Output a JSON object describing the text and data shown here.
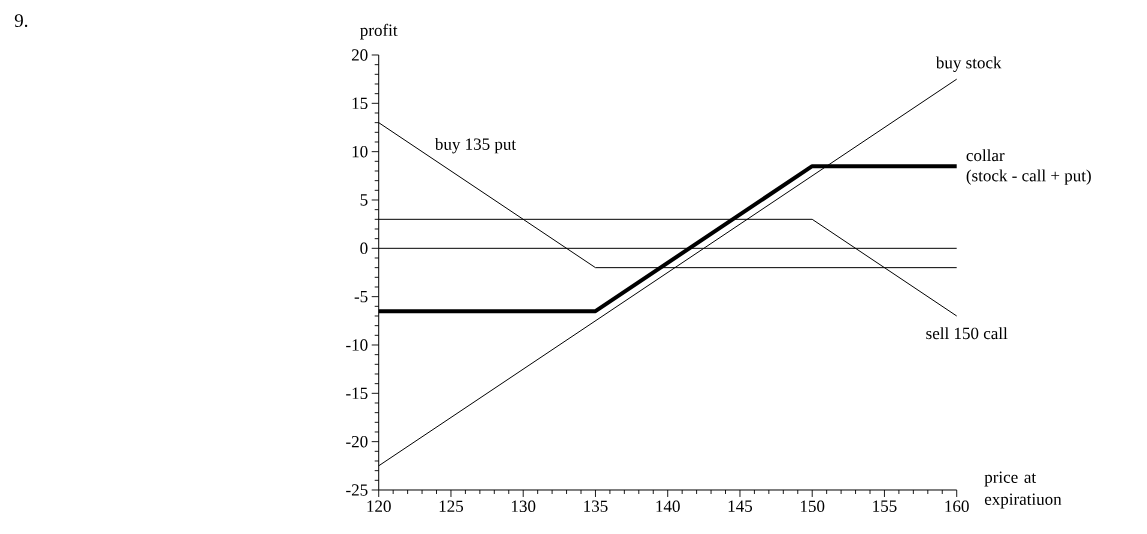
{
  "chart_data": {
    "type": "line",
    "xlabel": "price at expiratiuon",
    "ylabel": "profit",
    "annotations": [
      "9.",
      {
        "text": "(stock - call + put)",
        "x": 160,
        "y": 8.5
      }
    ],
    "xlim": [
      120,
      160
    ],
    "ylim": [
      -25,
      20
    ],
    "xticks": [
      120,
      125,
      130,
      135,
      140,
      145,
      150,
      155,
      160,
      {
        "value": 121,
        "label": null
      },
      {
        "value": 122,
        "label": null
      },
      {
        "value": 123,
        "label": null
      },
      {
        "value": 124,
        "label": null
      },
      {
        "value": 126,
        "label": null
      },
      {
        "value": 127,
        "label": null
      },
      {
        "value": 128,
        "label": null
      },
      {
        "value": 129,
        "label": null
      },
      {
        "value": 131,
        "label": null
      },
      {
        "value": 132,
        "label": null
      },
      {
        "value": 133,
        "label": null
      },
      {
        "value": 134,
        "label": null
      },
      {
        "value": 136,
        "label": null
      },
      {
        "value": 137,
        "label": null
      },
      {
        "value": 138,
        "label": null
      },
      {
        "value": 139,
        "label": null
      },
      {
        "value": 141,
        "label": null
      },
      {
        "value": 142,
        "label": null
      },
      {
        "value": 143,
        "label": null
      },
      {
        "value": 144,
        "label": null
      },
      {
        "value": 146,
        "label": null
      },
      {
        "value": 147,
        "label": null
      },
      {
        "value": 148,
        "label": null
      },
      {
        "value": 149,
        "label": null
      },
      {
        "value": 151,
        "label": null
      },
      {
        "value": 152,
        "label": null
      },
      {
        "value": 153,
        "label": null
      },
      {
        "value": 154,
        "label": null
      },
      {
        "value": 156,
        "label": null
      },
      {
        "value": 157,
        "label": null
      },
      {
        "value": 158,
        "label": null
      },
      {
        "value": 159,
        "label": null
      }
    ],
    "yticks": [
      -25,
      -20,
      -15,
      -10,
      -5,
      0,
      5,
      10,
      15,
      20,
      {
        "value": -24,
        "label": null
      },
      {
        "value": -23,
        "label": null
      },
      {
        "value": -22,
        "label": null
      },
      {
        "value": -21,
        "label": null
      },
      {
        "value": -19,
        "label": null
      },
      {
        "value": -18,
        "label": null
      },
      {
        "value": -17,
        "label": null
      },
      {
        "value": -16,
        "label": null
      },
      {
        "value": -14,
        "label": null
      },
      {
        "value": -13,
        "label": null
      },
      {
        "value": -12,
        "label": null
      },
      {
        "value": -11,
        "label": null
      },
      {
        "value": -9,
        "label": null
      },
      {
        "value": -8,
        "label": null
      },
      {
        "value": -7,
        "label": null
      },
      {
        "value": -6,
        "label": null
      },
      {
        "value": -4,
        "label": null
      },
      {
        "value": -3,
        "label": null
      },
      {
        "value": -2,
        "label": null
      },
      {
        "value": -1,
        "label": null
      },
      {
        "value": 1,
        "label": null
      },
      {
        "value": 2,
        "label": null
      },
      {
        "value": 3,
        "label": null
      },
      {
        "value": 4,
        "label": null
      },
      {
        "value": 6,
        "label": null
      },
      {
        "value": 7,
        "label": null
      },
      {
        "value": 8,
        "label": null
      },
      {
        "value": 9,
        "label": null
      },
      {
        "value": 11,
        "label": null
      },
      {
        "value": 12,
        "label": null
      },
      {
        "value": 13,
        "label": null
      },
      {
        "value": 14,
        "label": null
      },
      {
        "value": 16,
        "label": null
      },
      {
        "value": 17,
        "label": null
      },
      {
        "value": 18,
        "label": null
      },
      {
        "value": 19,
        "label": null
      }
    ],
    "ref_lines": [
      {
        "axis": "y",
        "value": 0,
        "color": "#000000"
      }
    ],
    "series": [
      {
        "name": "buy stock",
        "color": "#000000",
        "x": [
          120,
          160
        ],
        "values": [
          -22.5,
          17.5
        ]
      },
      {
        "name": "buy 135 put",
        "color": "#000000",
        "x": [
          120,
          135,
          160
        ],
        "values": [
          13,
          -2,
          -2
        ]
      },
      {
        "name": "sell 150 call",
        "color": "#000000",
        "x": [
          120,
          150,
          160
        ],
        "values": [
          3,
          3,
          -7
        ]
      },
      {
        "name": "collar",
        "color": "#000000",
        "x": [
          120,
          135,
          150,
          160
        ],
        "values": [
          -6.5,
          -6.5,
          8.5,
          8.5
        ]
      }
    ]
  }
}
